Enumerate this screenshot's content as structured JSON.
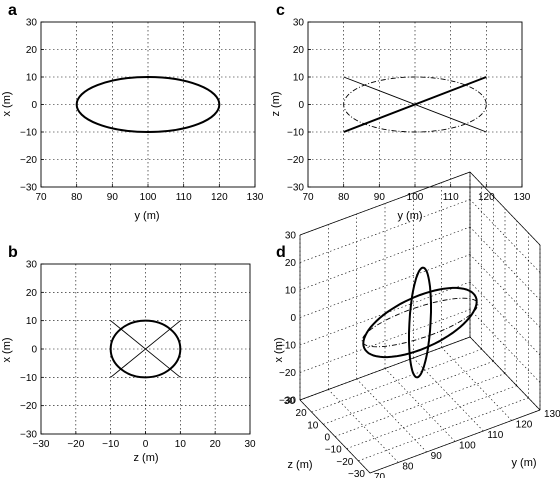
{
  "chart_data": [
    {
      "id": "a",
      "panel_label": "a",
      "type": "line",
      "xlabel": "y (m)",
      "ylabel": "x (m)",
      "xlim": [
        70,
        130
      ],
      "ylim": [
        -30,
        30
      ],
      "xticks": [
        70,
        80,
        90,
        100,
        110,
        120,
        130
      ],
      "yticks": [
        -30,
        -20,
        -10,
        0,
        10,
        20,
        30
      ],
      "grid": true,
      "series": [
        {
          "shape": "ellipse",
          "center": [
            100,
            0
          ],
          "radii": [
            20,
            10
          ],
          "style": "thick"
        }
      ]
    },
    {
      "id": "c",
      "panel_label": "c",
      "type": "line",
      "xlabel": "y (m)",
      "ylabel": "z (m)",
      "xlim": [
        70,
        130
      ],
      "ylim": [
        -30,
        30
      ],
      "xticks": [
        70,
        80,
        90,
        100,
        110,
        120,
        130
      ],
      "yticks": [
        -30,
        -20,
        -10,
        0,
        10,
        20,
        30
      ],
      "grid": true,
      "series": [
        {
          "shape": "ellipse",
          "center": [
            100,
            0
          ],
          "radii": [
            20,
            10
          ],
          "style": "dashdot"
        },
        {
          "shape": "line",
          "x": [
            80,
            120
          ],
          "y": [
            -10,
            10
          ],
          "style": "thick"
        },
        {
          "shape": "line",
          "x": [
            80,
            120
          ],
          "y": [
            10,
            -10
          ],
          "style": "thin"
        }
      ]
    },
    {
      "id": "b",
      "panel_label": "b",
      "type": "line",
      "xlabel": "z (m)",
      "ylabel": "x (m)",
      "xlim": [
        -30,
        30
      ],
      "ylim": [
        -30,
        30
      ],
      "xticks": [
        -30,
        -20,
        -10,
        0,
        10,
        20,
        30
      ],
      "yticks": [
        -30,
        -20,
        -10,
        0,
        10,
        20,
        30
      ],
      "grid": true,
      "series": [
        {
          "shape": "ellipse",
          "center": [
            0,
            0
          ],
          "radii": [
            10,
            10
          ],
          "style": "thick"
        },
        {
          "shape": "line",
          "x": [
            -10,
            10
          ],
          "y": [
            -10,
            10
          ],
          "style": "thin"
        },
        {
          "shape": "line",
          "x": [
            -10,
            10
          ],
          "y": [
            10,
            -10
          ],
          "style": "thin"
        }
      ]
    },
    {
      "id": "d",
      "panel_label": "d",
      "type": "line3d",
      "xlabel": "y (m)",
      "ylabel": "z (m)",
      "zlabel": "x (m)",
      "ylim_y": [
        70,
        130
      ],
      "zlim_z": [
        -30,
        30
      ],
      "xlim_x": [
        -30,
        30
      ],
      "y_ticks": [
        70,
        80,
        90,
        100,
        110,
        120,
        130
      ],
      "z_ticks": [
        -30,
        -20,
        -10,
        0,
        10,
        20,
        30
      ],
      "x_ticks": [
        -30,
        -20,
        -10,
        0,
        10,
        20,
        30
      ],
      "grid": true,
      "series": [
        {
          "orbit": "horizontal",
          "center": [
            100,
            0,
            0
          ],
          "radii_y_x": [
            20,
            10
          ],
          "style": "thick"
        },
        {
          "orbit": "tilted",
          "center": [
            100,
            0,
            0
          ],
          "radius": 12,
          "style": "thick"
        },
        {
          "orbit": "vertical",
          "center": [
            100,
            0,
            0
          ],
          "radii_y_z": [
            20,
            10
          ],
          "style": "dashdot"
        }
      ]
    }
  ]
}
